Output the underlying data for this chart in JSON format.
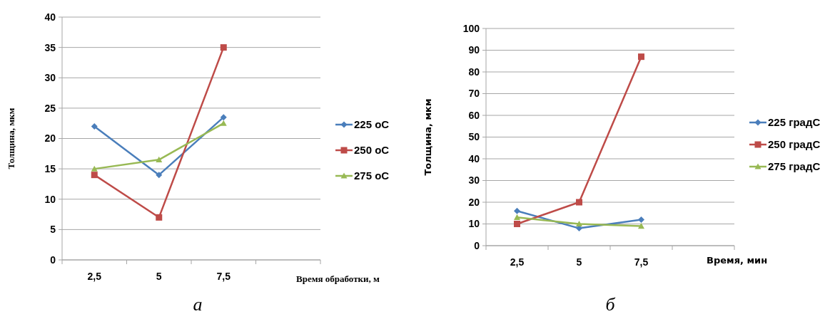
{
  "chart_data": [
    {
      "type": "line",
      "categories": [
        "2,5",
        "5",
        "7,5",
        null
      ],
      "xlabel": "Время обработки, м",
      "ylabel": "Толщина, мкм",
      "ylim": [
        0,
        40
      ],
      "yticks": [
        0,
        5,
        10,
        15,
        20,
        25,
        30,
        35,
        40
      ],
      "grid": "y",
      "legend": "right",
      "annotations": [
        "а"
      ],
      "series": [
        {
          "name": "225 оС",
          "color": "#4a7ebb",
          "marker": "diamond",
          "values": [
            22,
            14,
            23.5,
            null
          ]
        },
        {
          "name": "250 оС",
          "color": "#be4b48",
          "marker": "square",
          "values": [
            14,
            7,
            35,
            null
          ]
        },
        {
          "name": "275 оС",
          "color": "#98b954",
          "marker": "triangle",
          "values": [
            15,
            16.5,
            22.5,
            null
          ]
        }
      ]
    },
    {
      "type": "line",
      "categories": [
        "2,5",
        "5",
        "7,5",
        null
      ],
      "xlabel": "Время, мин",
      "ylabel": "Толщина, мкм",
      "ylim": [
        0,
        100
      ],
      "yticks": [
        0,
        10,
        20,
        30,
        40,
        50,
        60,
        70,
        80,
        90,
        100
      ],
      "grid": "y",
      "legend": "right",
      "annotations": [
        "б"
      ],
      "series": [
        {
          "name": "225 градС",
          "color": "#4a7ebb",
          "marker": "diamond",
          "values": [
            16,
            8,
            12,
            null
          ]
        },
        {
          "name": "250 градС",
          "color": "#be4b48",
          "marker": "square",
          "values": [
            10,
            20,
            87,
            null
          ]
        },
        {
          "name": "275 градС",
          "color": "#98b954",
          "marker": "triangle",
          "values": [
            13,
            10,
            9,
            null
          ]
        }
      ]
    }
  ]
}
